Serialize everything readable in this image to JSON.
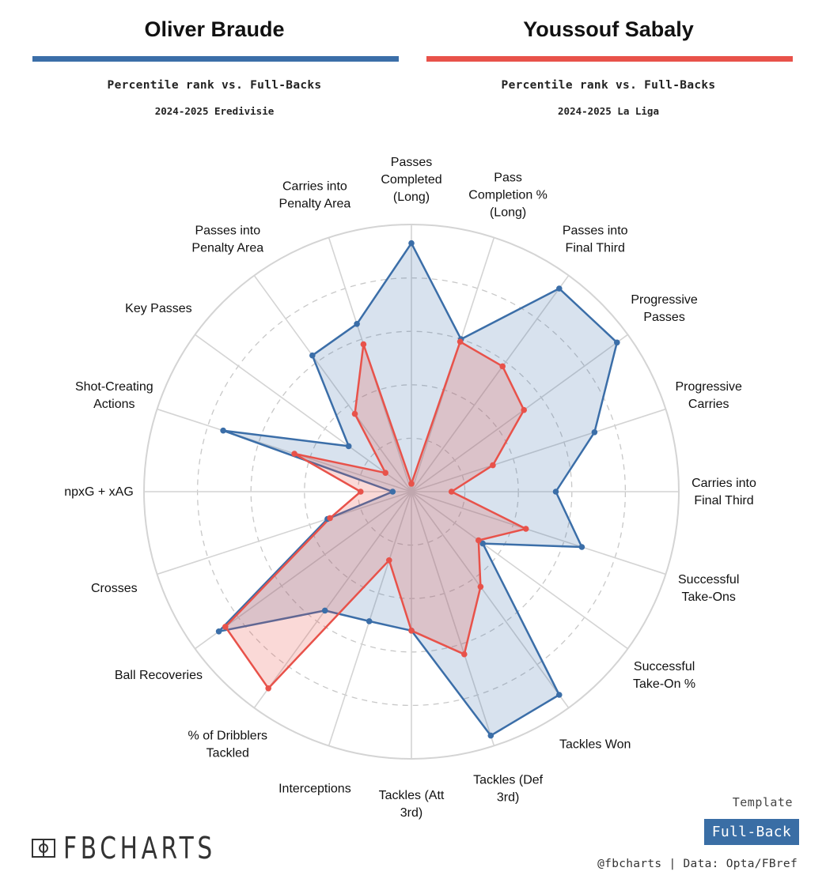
{
  "players": [
    {
      "name": "Oliver Braude",
      "subtitle": "Percentile rank vs. Full-Backs",
      "season": "2024-2025 Eredivisie",
      "color": "#3b6ea8"
    },
    {
      "name": "Youssouf Sabaly",
      "subtitle": "Percentile rank vs. Full-Backs",
      "season": "2024-2025 La Liga",
      "color": "#e8524a"
    }
  ],
  "chart_data": {
    "type": "radar",
    "scale": "percentile",
    "range": [
      0,
      100
    ],
    "grid": true,
    "categories": [
      "Passes Completed (Long)",
      "Pass Completion % (Long)",
      "Passes into Final Third",
      "Progressive Passes",
      "Progressive Carries",
      "Carries into Final Third",
      "Successful Take-Ons",
      "Successful Take-On %",
      "Tackles Won",
      "Tackles (Def 3rd)",
      "Tackles (Att 3rd)",
      "Interceptions",
      "% of Dribblers Tackled",
      "Ball Recoveries",
      "Crosses",
      "npxG + xAG",
      "Shot-Creating Actions",
      "Key Passes",
      "Passes into Penalty Area",
      "Carries into Penalty Area"
    ],
    "axis_label_lines": [
      [
        "Passes",
        "Completed",
        "(Long)"
      ],
      [
        "Pass",
        "Completion %",
        "(Long)"
      ],
      [
        "Passes into",
        "Final Third"
      ],
      [
        "Progressive",
        "Passes"
      ],
      [
        "Progressive",
        "Carries"
      ],
      [
        "Carries into",
        "Final Third"
      ],
      [
        "Successful",
        "Take-Ons"
      ],
      [
        "Successful",
        "Take-On %"
      ],
      [
        "Tackles Won"
      ],
      [
        "Tackles (Def",
        "3rd)"
      ],
      [
        "Tackles (Att",
        "3rd)"
      ],
      [
        "Interceptions"
      ],
      [
        "% of Dribblers",
        "Tackled"
      ],
      [
        "Ball Recoveries"
      ],
      [
        "Crosses"
      ],
      [
        "npxG + xAG"
      ],
      [
        "Shot-Creating",
        "Actions"
      ],
      [
        "Key Passes"
      ],
      [
        "Passes into",
        "Penalty Area"
      ],
      [
        "Carries into",
        "Penalty Area"
      ]
    ],
    "series": [
      {
        "name": "Oliver Braude",
        "color": "#3b6ea8",
        "values": [
          93,
          60,
          94,
          95,
          72,
          54,
          67,
          33,
          94,
          96,
          52,
          51,
          55,
          89,
          33,
          7,
          74,
          29,
          63,
          66
        ]
      },
      {
        "name": "Youssouf Sabaly",
        "color": "#e8524a",
        "values": [
          3,
          59,
          58,
          52,
          32,
          15,
          45,
          31,
          44,
          64,
          52,
          27,
          91,
          86,
          32,
          19,
          46,
          12,
          36,
          58
        ]
      }
    ]
  },
  "footer": {
    "brand": "FBCHARTS",
    "template_label": "Template",
    "template_value": "Full-Back",
    "credit": "@fbcharts | Data: Opta/FBref"
  }
}
